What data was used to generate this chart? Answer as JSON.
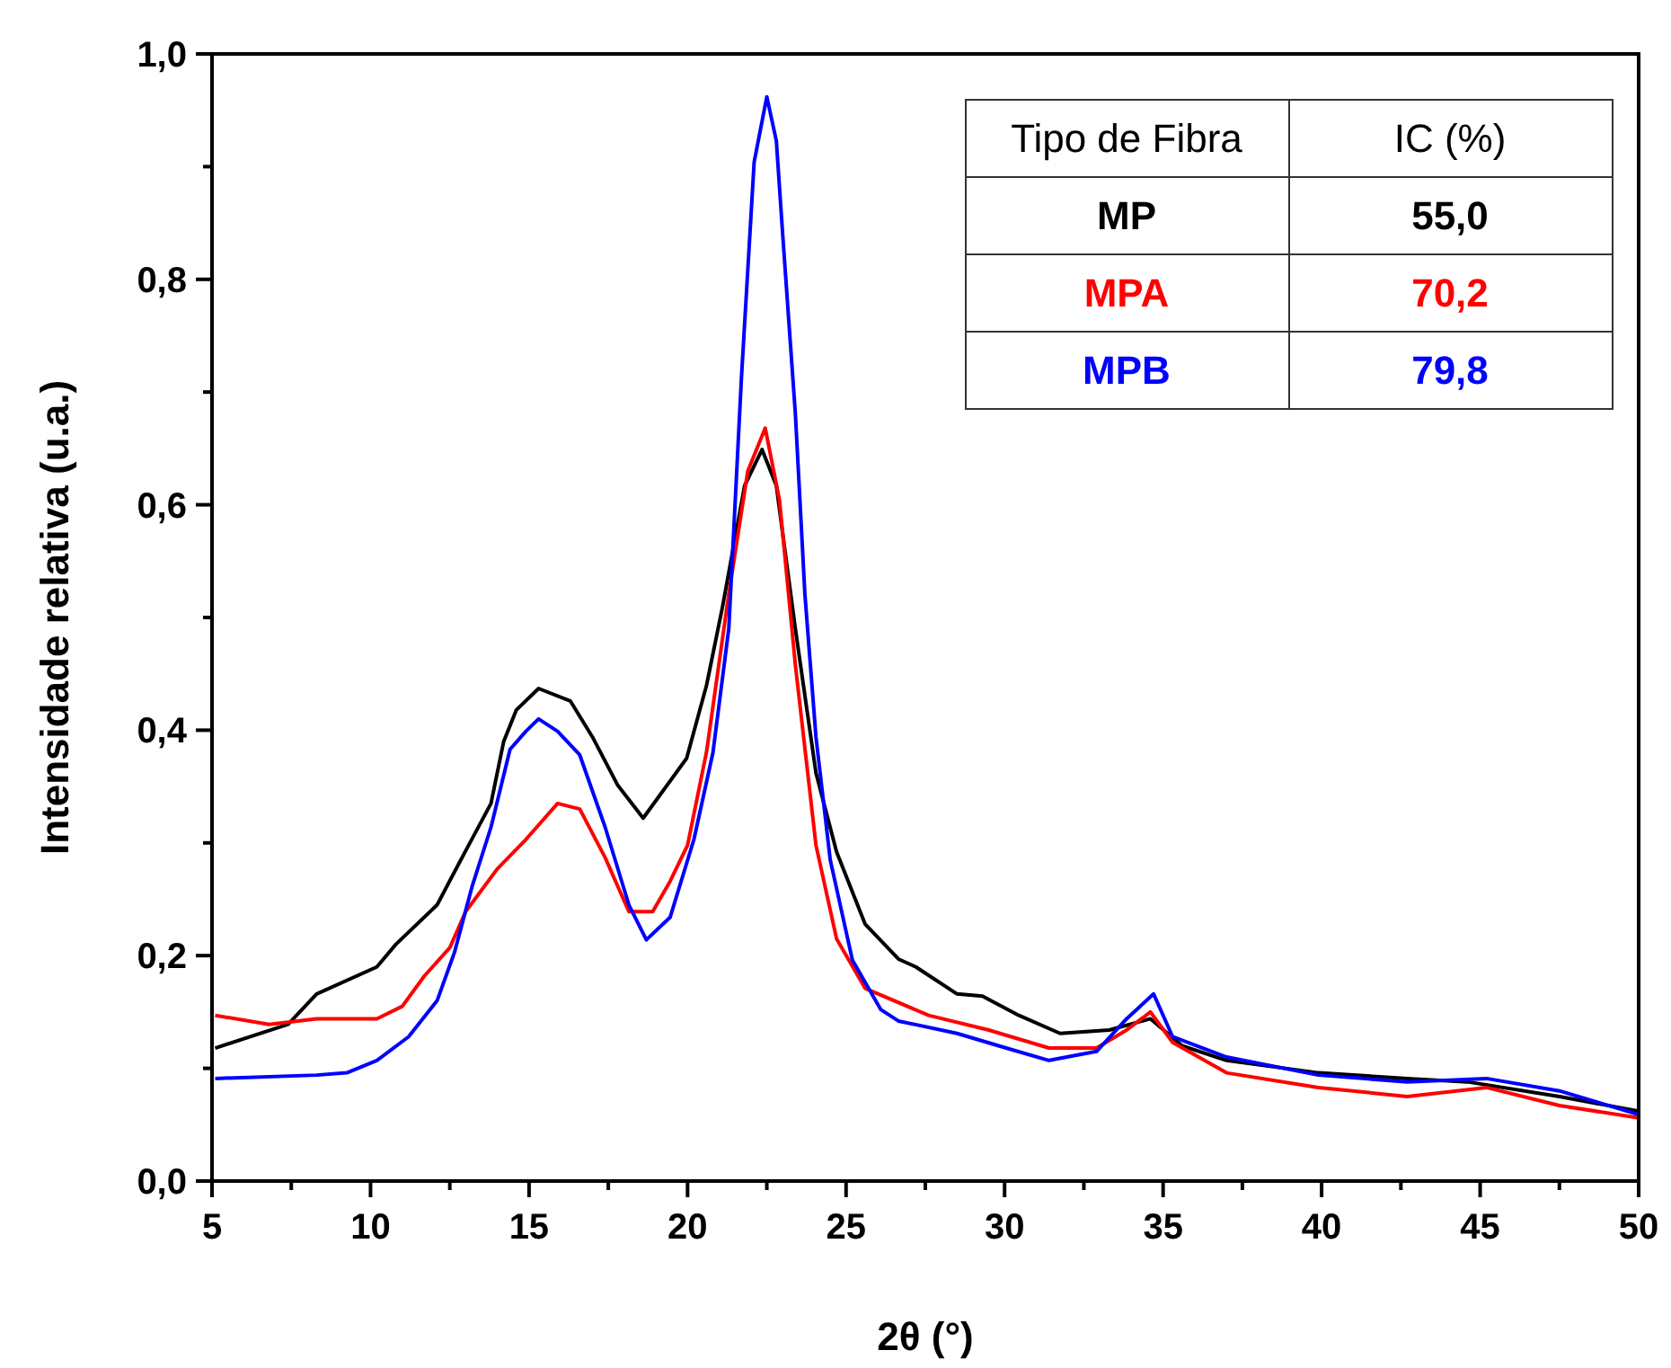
{
  "chart_data": {
    "type": "line",
    "xlabel": "2θ (°)",
    "ylabel": "Intensidade relativa (u.a.)",
    "xlim": [
      5,
      50
    ],
    "ylim": [
      0,
      1
    ],
    "xticks": [
      5,
      {
        "value": 7.5,
        "label": null
      },
      10,
      {
        "value": 12.5,
        "label": null
      },
      15,
      {
        "value": 17.5,
        "label": null
      },
      20,
      {
        "value": 22.5,
        "label": null
      },
      25,
      {
        "value": 27.5,
        "label": null
      },
      30,
      {
        "value": 32.5,
        "label": null
      },
      35,
      {
        "value": 37.5,
        "label": null
      },
      40,
      {
        "value": 42.5,
        "label": null
      },
      45,
      {
        "value": 47.5,
        "label": null
      },
      50
    ],
    "yticks": [
      {
        "value": 0,
        "label": "0,0"
      },
      {
        "value": 0.1,
        "label": null
      },
      {
        "value": 0.2,
        "label": "0,2"
      },
      {
        "value": 0.3,
        "label": null
      },
      {
        "value": 0.4,
        "label": "0,4"
      },
      {
        "value": 0.5,
        "label": null
      },
      {
        "value": 0.6,
        "label": "0,6"
      },
      {
        "value": 0.7,
        "label": null
      },
      {
        "value": 0.8,
        "label": "0,8"
      },
      {
        "value": 0.9,
        "label": null
      },
      {
        "value": 1,
        "label": "1,0"
      }
    ],
    "grid": false,
    "legend": "top right",
    "marker": "none",
    "line_style": "solid",
    "annotations": [
      "Tipo de Fibra",
      "IC (%)",
      "55,0",
      "70,2",
      "79,8"
    ],
    "series": [
      {
        "name": "MP",
        "color": "#000000",
        "x": [
          5.1,
          7.4,
          8.3,
          10.2,
          10.8,
          12.1,
          13.0,
          13.8,
          14.2,
          14.6,
          15.3,
          16.3,
          17.0,
          17.8,
          18.6,
          19.97,
          20.6,
          21.1,
          21.8,
          22.35,
          22.8,
          23.4,
          24.05,
          24.7,
          25.6,
          26.65,
          27.2,
          28.5,
          29.3,
          30.45,
          31.75,
          33.3,
          34.6,
          35.6,
          37.0,
          39.9,
          42.7,
          44.6,
          47.5,
          50
        ],
        "values": [
          0.118,
          0.139,
          0.166,
          0.19,
          0.21,
          0.245,
          0.293,
          0.335,
          0.39,
          0.418,
          0.437,
          0.426,
          0.394,
          0.351,
          0.322,
          0.375,
          0.44,
          0.509,
          0.617,
          0.649,
          0.617,
          0.49,
          0.362,
          0.292,
          0.228,
          0.197,
          0.19,
          0.166,
          0.164,
          0.147,
          0.131,
          0.134,
          0.144,
          0.12,
          0.107,
          0.096,
          0.091,
          0.088,
          0.075,
          0.062
        ]
      },
      {
        "name": "MPA",
        "color": "#ff0000",
        "x": [
          5.1,
          6.8,
          8.3,
          10.2,
          11,
          11.7,
          12.5,
          13.0,
          14,
          14.9,
          15.9,
          16.6,
          17.4,
          18.15,
          18.9,
          19.45,
          20,
          20.6,
          21.3,
          21.9,
          22.45,
          22.9,
          23.4,
          24.05,
          24.7,
          25.6,
          27.6,
          29.5,
          31.4,
          32.9,
          33.85,
          34.6,
          35.3,
          37,
          39.9,
          42.7,
          45.2,
          47.5,
          50
        ],
        "values": [
          0.147,
          0.139,
          0.144,
          0.144,
          0.155,
          0.182,
          0.207,
          0.239,
          0.277,
          0.303,
          0.335,
          0.33,
          0.287,
          0.239,
          0.239,
          0.266,
          0.298,
          0.381,
          0.521,
          0.63,
          0.668,
          0.604,
          0.458,
          0.298,
          0.215,
          0.171,
          0.147,
          0.134,
          0.118,
          0.118,
          0.134,
          0.15,
          0.123,
          0.096,
          0.083,
          0.075,
          0.083,
          0.067,
          0.056
        ]
      },
      {
        "name": "MPB",
        "color": "#0000ff",
        "x": [
          5.1,
          8.3,
          9.25,
          10.2,
          11.2,
          12.1,
          12.65,
          13.2,
          13.8,
          14.4,
          14.9,
          15.3,
          15.9,
          16.6,
          17.4,
          18.15,
          18.7,
          19.45,
          20.2,
          20.8,
          21.3,
          21.7,
          22.1,
          22.5,
          22.8,
          23.0,
          23.4,
          23.7,
          24.05,
          24.5,
          25.2,
          26.1,
          26.65,
          28.5,
          30.05,
          31.4,
          32.9,
          33.85,
          34.7,
          35.3,
          37,
          39.9,
          42.7,
          45.2,
          47.5,
          50
        ],
        "values": [
          0.091,
          0.094,
          0.096,
          0.107,
          0.128,
          0.16,
          0.203,
          0.261,
          0.314,
          0.383,
          0.399,
          0.41,
          0.399,
          0.378,
          0.314,
          0.245,
          0.214,
          0.234,
          0.303,
          0.38,
          0.49,
          0.713,
          0.904,
          0.962,
          0.923,
          0.84,
          0.681,
          0.521,
          0.394,
          0.285,
          0.196,
          0.152,
          0.142,
          0.131,
          0.118,
          0.107,
          0.115,
          0.144,
          0.166,
          0.128,
          0.11,
          0.094,
          0.088,
          0.091,
          0.08,
          0.059
        ]
      }
    ]
  }
}
